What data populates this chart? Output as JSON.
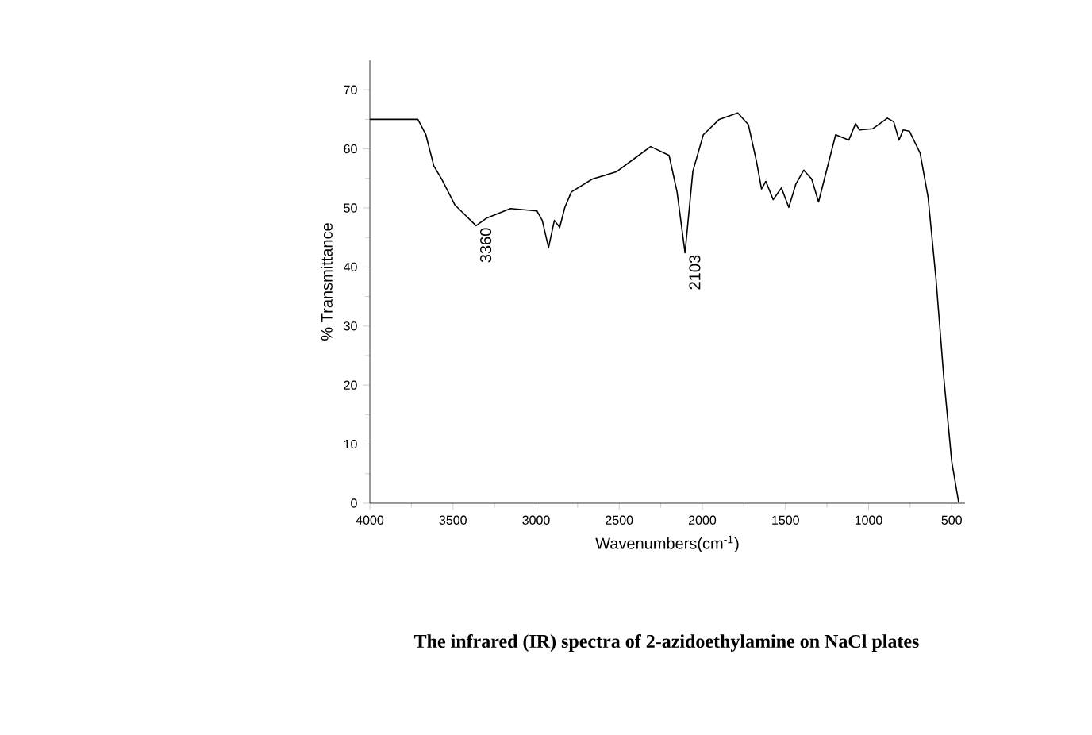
{
  "chart_data": {
    "type": "line",
    "title": "The infrared (IR) spectra of 2-azidoethylamine on NaCl plates",
    "xlabel": "Wavenumbers(cm$^{-1}$)",
    "ylabel": "% Transmittance",
    "x": [
      4000,
      3711,
      3663,
      3615,
      3568,
      3488,
      3361,
      3297,
      3154,
      2995,
      2963,
      2925,
      2890,
      2858,
      2827,
      2788,
      2661,
      2518,
      2407,
      2311,
      2200,
      2152,
      2104,
      2057,
      1994,
      1898,
      1787,
      1723,
      1675,
      1644,
      1618,
      1574,
      1524,
      1480,
      1438,
      1390,
      1342,
      1301,
      1198,
      1119,
      1078,
      1055,
      976,
      887,
      849,
      817,
      792,
      754,
      690,
      642,
      594,
      547,
      500,
      458
    ],
    "values": [
      65.0,
      65.0,
      62.4,
      57.1,
      54.9,
      50.5,
      47.0,
      48.3,
      49.9,
      49.5,
      47.9,
      43.3,
      47.9,
      46.7,
      50.1,
      52.7,
      54.9,
      56.1,
      58.4,
      60.4,
      58.9,
      52.7,
      42.4,
      56.2,
      62.4,
      65.0,
      66.1,
      64.1,
      58.0,
      53.2,
      54.5,
      51.4,
      53.4,
      50.1,
      54.0,
      56.4,
      54.9,
      51.0,
      62.4,
      61.5,
      64.3,
      63.2,
      63.4,
      65.2,
      64.6,
      61.5,
      63.2,
      63.0,
      59.3,
      51.8,
      37.8,
      21.1,
      7.1,
      0.1
    ],
    "color": "#000000",
    "xlim": [
      4000,
      420
    ],
    "xticks": [
      4000,
      3500,
      3000,
      2500,
      2000,
      1500,
      1000,
      500
    ],
    "ylim": [
      0,
      75
    ],
    "yticks": [
      0,
      10,
      20,
      30,
      40,
      50,
      60,
      70
    ],
    "annotations": [
      {
        "text": "3360",
        "x": 3360,
        "y": 47.0
      },
      {
        "text": "2103",
        "x": 2103,
        "y": 42.4
      }
    ]
  }
}
